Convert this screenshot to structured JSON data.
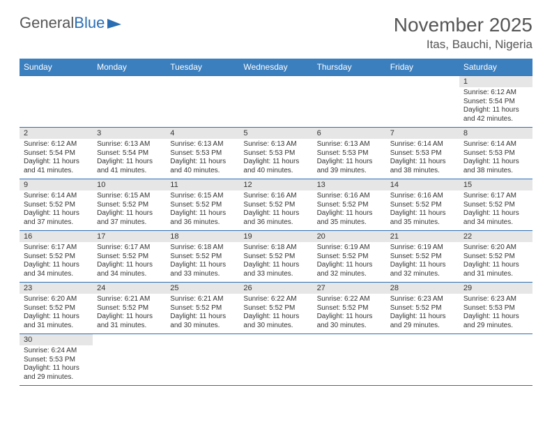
{
  "logo": {
    "text1": "General",
    "text2": "Blue"
  },
  "header": {
    "title": "November 2025",
    "location": "Itas, Bauchi, Nigeria"
  },
  "colors": {
    "header_bg": "#3b7fbf",
    "header_text": "#ffffff",
    "border": "#2a6db3",
    "daynum_bg": "#e6e6e6",
    "text": "#333333",
    "logo_blue": "#2a6db3",
    "logo_gray": "#555555"
  },
  "weekdays": [
    "Sunday",
    "Monday",
    "Tuesday",
    "Wednesday",
    "Thursday",
    "Friday",
    "Saturday"
  ],
  "grid": [
    [
      null,
      null,
      null,
      null,
      null,
      null,
      {
        "n": "1",
        "sr": "6:12 AM",
        "ss": "5:54 PM",
        "dl": "11 hours and 42 minutes."
      }
    ],
    [
      {
        "n": "2",
        "sr": "6:12 AM",
        "ss": "5:54 PM",
        "dl": "11 hours and 41 minutes."
      },
      {
        "n": "3",
        "sr": "6:13 AM",
        "ss": "5:54 PM",
        "dl": "11 hours and 41 minutes."
      },
      {
        "n": "4",
        "sr": "6:13 AM",
        "ss": "5:53 PM",
        "dl": "11 hours and 40 minutes."
      },
      {
        "n": "5",
        "sr": "6:13 AM",
        "ss": "5:53 PM",
        "dl": "11 hours and 40 minutes."
      },
      {
        "n": "6",
        "sr": "6:13 AM",
        "ss": "5:53 PM",
        "dl": "11 hours and 39 minutes."
      },
      {
        "n": "7",
        "sr": "6:14 AM",
        "ss": "5:53 PM",
        "dl": "11 hours and 38 minutes."
      },
      {
        "n": "8",
        "sr": "6:14 AM",
        "ss": "5:53 PM",
        "dl": "11 hours and 38 minutes."
      }
    ],
    [
      {
        "n": "9",
        "sr": "6:14 AM",
        "ss": "5:52 PM",
        "dl": "11 hours and 37 minutes."
      },
      {
        "n": "10",
        "sr": "6:15 AM",
        "ss": "5:52 PM",
        "dl": "11 hours and 37 minutes."
      },
      {
        "n": "11",
        "sr": "6:15 AM",
        "ss": "5:52 PM",
        "dl": "11 hours and 36 minutes."
      },
      {
        "n": "12",
        "sr": "6:16 AM",
        "ss": "5:52 PM",
        "dl": "11 hours and 36 minutes."
      },
      {
        "n": "13",
        "sr": "6:16 AM",
        "ss": "5:52 PM",
        "dl": "11 hours and 35 minutes."
      },
      {
        "n": "14",
        "sr": "6:16 AM",
        "ss": "5:52 PM",
        "dl": "11 hours and 35 minutes."
      },
      {
        "n": "15",
        "sr": "6:17 AM",
        "ss": "5:52 PM",
        "dl": "11 hours and 34 minutes."
      }
    ],
    [
      {
        "n": "16",
        "sr": "6:17 AM",
        "ss": "5:52 PM",
        "dl": "11 hours and 34 minutes."
      },
      {
        "n": "17",
        "sr": "6:17 AM",
        "ss": "5:52 PM",
        "dl": "11 hours and 34 minutes."
      },
      {
        "n": "18",
        "sr": "6:18 AM",
        "ss": "5:52 PM",
        "dl": "11 hours and 33 minutes."
      },
      {
        "n": "19",
        "sr": "6:18 AM",
        "ss": "5:52 PM",
        "dl": "11 hours and 33 minutes."
      },
      {
        "n": "20",
        "sr": "6:19 AM",
        "ss": "5:52 PM",
        "dl": "11 hours and 32 minutes."
      },
      {
        "n": "21",
        "sr": "6:19 AM",
        "ss": "5:52 PM",
        "dl": "11 hours and 32 minutes."
      },
      {
        "n": "22",
        "sr": "6:20 AM",
        "ss": "5:52 PM",
        "dl": "11 hours and 31 minutes."
      }
    ],
    [
      {
        "n": "23",
        "sr": "6:20 AM",
        "ss": "5:52 PM",
        "dl": "11 hours and 31 minutes."
      },
      {
        "n": "24",
        "sr": "6:21 AM",
        "ss": "5:52 PM",
        "dl": "11 hours and 31 minutes."
      },
      {
        "n": "25",
        "sr": "6:21 AM",
        "ss": "5:52 PM",
        "dl": "11 hours and 30 minutes."
      },
      {
        "n": "26",
        "sr": "6:22 AM",
        "ss": "5:52 PM",
        "dl": "11 hours and 30 minutes."
      },
      {
        "n": "27",
        "sr": "6:22 AM",
        "ss": "5:52 PM",
        "dl": "11 hours and 30 minutes."
      },
      {
        "n": "28",
        "sr": "6:23 AM",
        "ss": "5:52 PM",
        "dl": "11 hours and 29 minutes."
      },
      {
        "n": "29",
        "sr": "6:23 AM",
        "ss": "5:53 PM",
        "dl": "11 hours and 29 minutes."
      }
    ],
    [
      {
        "n": "30",
        "sr": "6:24 AM",
        "ss": "5:53 PM",
        "dl": "11 hours and 29 minutes."
      },
      null,
      null,
      null,
      null,
      null,
      null
    ]
  ],
  "labels": {
    "sunrise": "Sunrise:",
    "sunset": "Sunset:",
    "daylight": "Daylight:"
  }
}
